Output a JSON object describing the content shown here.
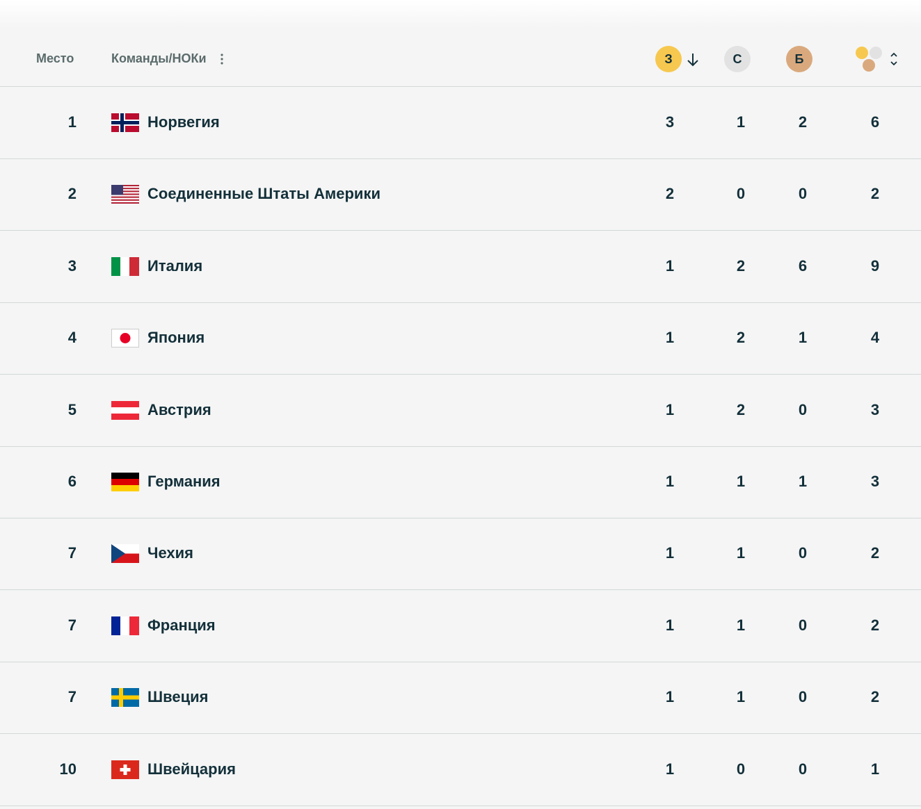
{
  "header": {
    "rank": "Место",
    "team": "Команды/НОКи",
    "gold": "З",
    "silver": "С",
    "bronze": "Б"
  },
  "rows": [
    {
      "rank": 1,
      "team": "Норвегия",
      "gold": 3,
      "silver": 1,
      "bronze": 2,
      "total": 6
    },
    {
      "rank": 2,
      "team": "Соединенные Штаты Америки",
      "gold": 2,
      "silver": 0,
      "bronze": 0,
      "total": 2
    },
    {
      "rank": 3,
      "team": "Италия",
      "gold": 1,
      "silver": 2,
      "bronze": 6,
      "total": 9
    },
    {
      "rank": 4,
      "team": "Япония",
      "gold": 1,
      "silver": 2,
      "bronze": 1,
      "total": 4
    },
    {
      "rank": 5,
      "team": "Австрия",
      "gold": 1,
      "silver": 2,
      "bronze": 0,
      "total": 3
    },
    {
      "rank": 6,
      "team": "Германия",
      "gold": 1,
      "silver": 1,
      "bronze": 1,
      "total": 3
    },
    {
      "rank": 7,
      "team": "Чехия",
      "gold": 1,
      "silver": 1,
      "bronze": 0,
      "total": 2
    },
    {
      "rank": 7,
      "team": "Франция",
      "gold": 1,
      "silver": 1,
      "bronze": 0,
      "total": 2
    },
    {
      "rank": 7,
      "team": "Швеция",
      "gold": 1,
      "silver": 1,
      "bronze": 0,
      "total": 2
    },
    {
      "rank": 10,
      "team": "Швейцария",
      "gold": 1,
      "silver": 0,
      "bronze": 0,
      "total": 1
    }
  ]
}
